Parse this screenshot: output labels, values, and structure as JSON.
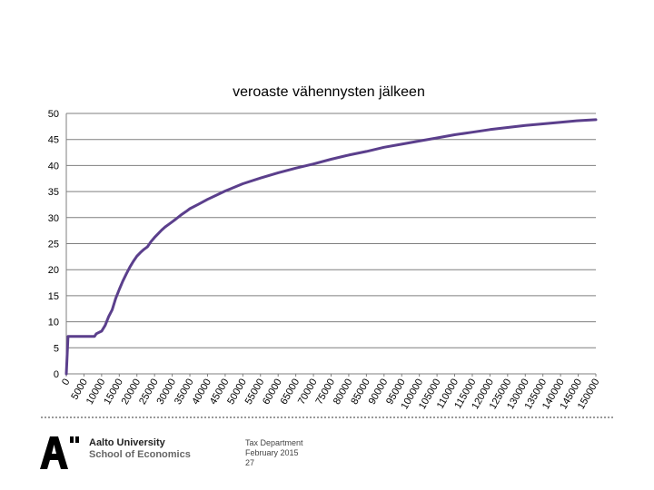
{
  "chart_data": {
    "type": "line",
    "title": "veroaste vähennysten jälkeen",
    "xlabel": "",
    "ylabel": "",
    "ylim": [
      0,
      50
    ],
    "xlim": [
      0,
      150000
    ],
    "grid": true,
    "legend": "none",
    "y_ticks": [
      0,
      5,
      10,
      15,
      20,
      25,
      30,
      35,
      40,
      45,
      50
    ],
    "x_ticks": [
      "0",
      "5000",
      "10000",
      "15000",
      "20000",
      "25000",
      "30000",
      "35000",
      "40000",
      "45000",
      "50000",
      "55000",
      "60000",
      "65000",
      "70000",
      "75000",
      "80000",
      "85000",
      "90000",
      "95000",
      "100000",
      "105000",
      "110000",
      "115000",
      "120000",
      "125000",
      "130000",
      "135000",
      "140000",
      "145000",
      "150000"
    ],
    "series": [
      {
        "color": "#5b3f8c",
        "x": [
          0,
          500,
          1000,
          2500,
          5000,
          7500,
          8000,
          8500,
          10000,
          11000,
          12000,
          13000,
          14000,
          15000,
          16000,
          17000,
          18000,
          19000,
          20000,
          21000,
          22000,
          23000,
          24000,
          25000,
          26000,
          27000,
          28000,
          29000,
          30000,
          31000,
          32500,
          34000,
          35000,
          37500,
          40000,
          42500,
          45000,
          47500,
          50000,
          55000,
          60000,
          65000,
          70000,
          75000,
          80000,
          85000,
          90000,
          95000,
          100000,
          105000,
          110000,
          115000,
          120000,
          125000,
          130000,
          135000,
          140000,
          145000,
          150000
        ],
        "y": [
          0,
          7.2,
          7.2,
          7.2,
          7.2,
          7.2,
          7.2,
          7.7,
          8.2,
          9.3,
          11.0,
          12.3,
          14.5,
          16.2,
          17.8,
          19.2,
          20.5,
          21.6,
          22.6,
          23.3,
          23.9,
          24.4,
          25.4,
          26.2,
          26.9,
          27.6,
          28.2,
          28.7,
          29.2,
          29.7,
          30.5,
          31.2,
          31.7,
          32.6,
          33.5,
          34.3,
          35.1,
          35.8,
          36.5,
          37.6,
          38.6,
          39.5,
          40.3,
          41.2,
          42.0,
          42.7,
          43.5,
          44.1,
          44.7,
          45.3,
          45.9,
          46.4,
          46.9,
          47.3,
          47.7,
          48.0,
          48.3,
          48.6,
          48.8
        ]
      }
    ]
  },
  "footer": {
    "university_line1": "Aalto University",
    "university_line2": "School of Economics",
    "info_line1": "Tax Department",
    "info_line2": "February 2015",
    "info_line3": "27"
  }
}
